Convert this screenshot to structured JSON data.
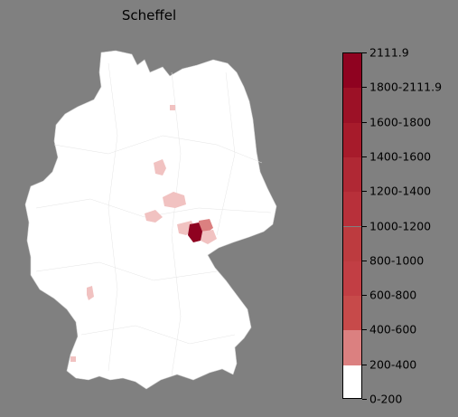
{
  "title": "Scheffel",
  "legend": {
    "labels": [
      "0-200",
      "200-400",
      "400-600",
      "600-800",
      "800-1000",
      "1000-1200",
      "1200-1400",
      "1400-1600",
      "1600-1800",
      "1800-2111.9",
      "2111.9"
    ],
    "colors": [
      "#ffffff",
      "#f1c2c1",
      "#db8080",
      "#c74a4a",
      "#c23e44",
      "#bd3b3f",
      "#b8303a",
      "#b02834",
      "#a71b2b",
      "#9c1126",
      "#8f0220"
    ]
  },
  "chart_data": {
    "type": "choropleth",
    "title": "Scheffel",
    "region": "Germany",
    "legend_placement": "right",
    "classes": [
      {
        "range": "0-200",
        "color": "#ffffff"
      },
      {
        "range": "200-400",
        "color": "#f1c2c1"
      },
      {
        "range": "400-600",
        "color": "#db8080"
      },
      {
        "range": "600-800",
        "color": "#c74a4a"
      },
      {
        "range": "800-1000",
        "color": "#c23e44"
      },
      {
        "range": "1000-1200",
        "color": "#bd3b3f"
      },
      {
        "range": "1200-1400",
        "color": "#b8303a"
      },
      {
        "range": "1400-1600",
        "color": "#b02834"
      },
      {
        "range": "1600-1800",
        "color": "#a71b2b"
      },
      {
        "range": "1800-2111.9",
        "color": "#9c1126"
      }
    ],
    "max_value": 2111.9
  }
}
